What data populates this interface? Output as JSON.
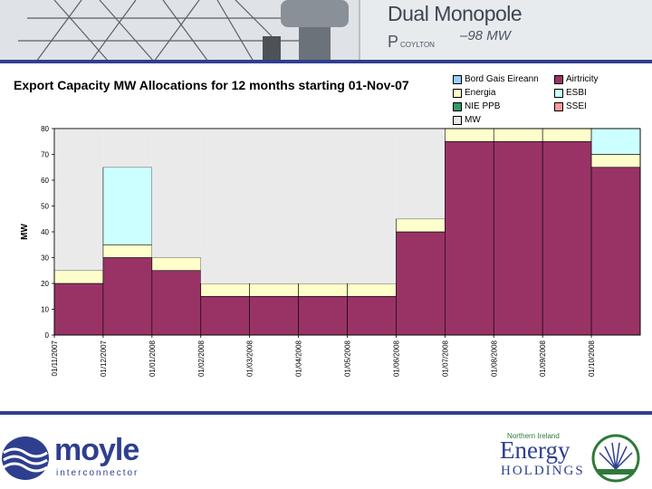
{
  "banner": {
    "sign_title": "Dual Monopole",
    "sign_sub": "P",
    "sign_sub2": "COYLTON",
    "sign_value": "–98 MW"
  },
  "chart_data": {
    "type": "area",
    "title": "Export Capacity MW Allocations for 12 months starting 01-Nov-07",
    "ylabel": "MW",
    "xlabel": "",
    "ylim": [
      0,
      80
    ],
    "yticks": [
      0,
      10,
      20,
      30,
      40,
      50,
      60,
      70,
      80
    ],
    "categories": [
      "01/11/2007",
      "01/12/2007",
      "01/01/2008",
      "01/02/2008",
      "01/03/2008",
      "01/04/2008",
      "01/05/2008",
      "01/06/2008",
      "01/07/2008",
      "01/08/2008",
      "01/09/2008",
      "01/10/2008"
    ],
    "tick_labels": [
      "01/11/2007",
      "01/12/2007",
      "01/01/2008",
      "01/02/2008",
      "01/03/2008",
      "01/04/2008",
      "01/05/2008",
      "01/06/2008",
      "01/07/2008",
      "01/08/2008",
      "01/09/2008",
      "01/10/2008"
    ],
    "series": [
      {
        "name": "Airtricity",
        "color": "#993366",
        "values": [
          20,
          30,
          25,
          15,
          15,
          15,
          15,
          40,
          75,
          75,
          75,
          65
        ]
      },
      {
        "name": "Energia",
        "color": "#ffffcc",
        "values": [
          5,
          5,
          5,
          5,
          5,
          5,
          5,
          5,
          5,
          5,
          5,
          5
        ]
      },
      {
        "name": "ESBI",
        "color": "#ccffff",
        "values": [
          0,
          30,
          0,
          0,
          0,
          0,
          0,
          0,
          0,
          0,
          0,
          10
        ]
      },
      {
        "name": "Bord Gais Eireann",
        "color": "#99ccff",
        "values": [
          0,
          0,
          0,
          0,
          0,
          0,
          0,
          0,
          0,
          0,
          0,
          0
        ]
      },
      {
        "name": "NIE PPB",
        "color": "#339966",
        "values": [
          0,
          0,
          0,
          0,
          0,
          0,
          0,
          0,
          0,
          0,
          0,
          0
        ]
      },
      {
        "name": "SSEI",
        "color": "#ff9999",
        "values": [
          0,
          0,
          0,
          0,
          0,
          0,
          0,
          0,
          0,
          0,
          0,
          0
        ]
      },
      {
        "name": "MW",
        "color": "#eaeaea",
        "values": [
          55,
          15,
          50,
          60,
          60,
          60,
          60,
          35,
          0,
          0,
          0,
          0
        ]
      }
    ],
    "legend": [
      "Bord Gais Eireann",
      "Airtricity",
      "Energia",
      "ESBI",
      "NIE PPB",
      "SSEI",
      "MW"
    ],
    "legend_position": "top-right",
    "grid": false
  },
  "footer": {
    "moyle_name": "moyle",
    "moyle_sub": "interconnector",
    "ni_top": "Northern Ireland",
    "ni_energy": "Energy",
    "ni_holdings": "HOLDINGS"
  }
}
